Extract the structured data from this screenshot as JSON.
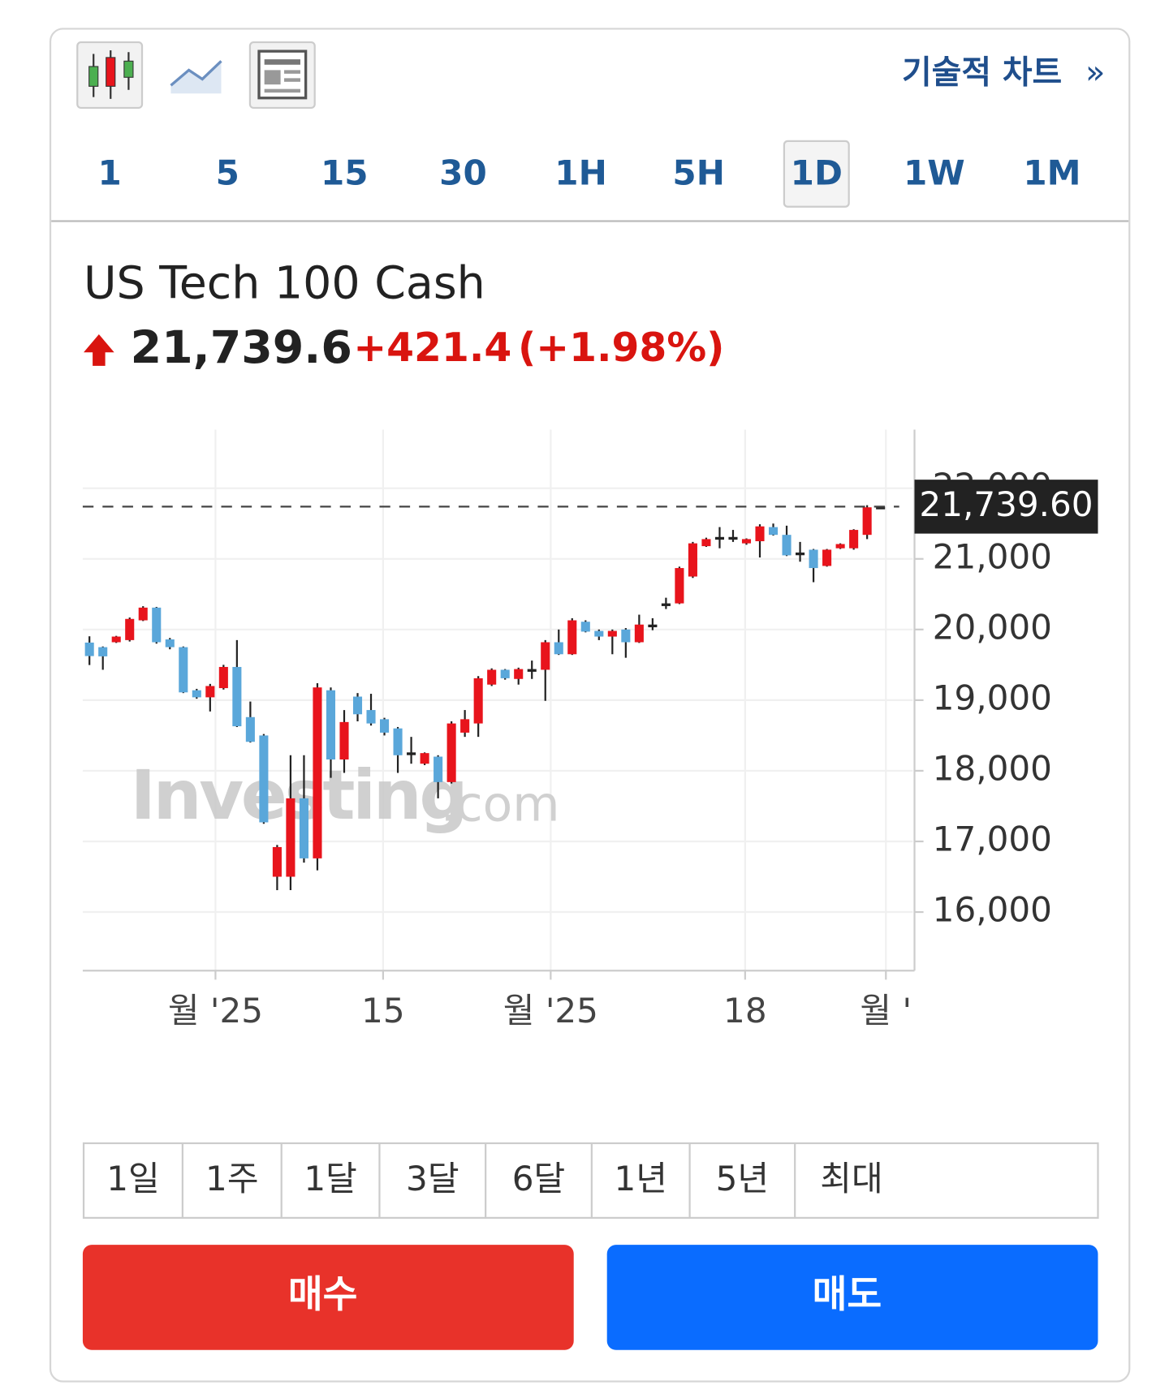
{
  "toolbar": {
    "link": "기술적 차트",
    "link_icon": "»"
  },
  "timeframes": [
    "1",
    "5",
    "15",
    "30",
    "1H",
    "5H",
    "1D",
    "1W",
    "1M"
  ],
  "active_timeframe": 6,
  "instrument": {
    "name": "US Tech 100 Cash",
    "price": "21,739.6",
    "change": "+421.4",
    "change_pct": "(+1.98%)"
  },
  "chart": {
    "type": "candlestick",
    "up_color": "#e8141c",
    "down_color": "#5aa7da",
    "grid": true,
    "watermark": "Investing",
    "watermark_suffix": ".com",
    "x": [
      0,
      1,
      2,
      3,
      4,
      5,
      6,
      7,
      8,
      9,
      10,
      11,
      12,
      13,
      14,
      15,
      16,
      17,
      18,
      19,
      20,
      21,
      22,
      23,
      24,
      25,
      26,
      27,
      28,
      29,
      30,
      31,
      32,
      33,
      34,
      35,
      36,
      37,
      38,
      39,
      40,
      41,
      42,
      43,
      44,
      45,
      46,
      47,
      48,
      49,
      50,
      51,
      52,
      53,
      54,
      55,
      56,
      57,
      58,
      59
    ],
    "open": [
      19815,
      19750,
      19820,
      19850,
      20130,
      20310,
      19860,
      19750,
      19140,
      19040,
      19170,
      19470,
      18760,
      18500,
      16500,
      16500,
      17610,
      16760,
      19140,
      18160,
      19050,
      18860,
      18730,
      18600,
      18260,
      18100,
      18200,
      17840,
      18540,
      18670,
      19220,
      19430,
      19300,
      19430,
      19430,
      19820,
      19650,
      20110,
      19980,
      19900,
      20000,
      19820,
      20070,
      20360,
      20370,
      20750,
      21180,
      21300,
      21300,
      21220,
      21250,
      21450,
      21340,
      21080,
      21130,
      20900,
      21150,
      21150,
      21340,
      21730
    ],
    "high": [
      19904,
      19760,
      19910,
      20170,
      20330,
      20320,
      19880,
      19760,
      19160,
      19230,
      19500,
      19850,
      18980,
      18520,
      16950,
      18220,
      18220,
      19240,
      19180,
      18860,
      19100,
      19090,
      18750,
      18620,
      18480,
      18260,
      18220,
      18700,
      18860,
      19340,
      19450,
      19440,
      19460,
      19560,
      19850,
      20000,
      20160,
      20130,
      20000,
      20000,
      20020,
      20210,
      20160,
      20450,
      20890,
      21240,
      21300,
      21450,
      21410,
      21290,
      21490,
      21500,
      21470,
      21240,
      21140,
      21140,
      21220,
      21420,
      21760,
      21750
    ],
    "low": [
      19497,
      19430,
      19810,
      19830,
      20120,
      19800,
      19720,
      19100,
      19020,
      18840,
      19150,
      18620,
      18400,
      17250,
      16310,
      16310,
      16700,
      16590,
      17900,
      17970,
      18700,
      18640,
      18500,
      17970,
      18100,
      18080,
      17610,
      17820,
      18480,
      18480,
      19200,
      19290,
      19220,
      19300,
      18990,
      19640,
      19640,
      19960,
      19850,
      19650,
      19600,
      19810,
      19990,
      20290,
      20360,
      20730,
      21170,
      21150,
      21240,
      21200,
      21020,
      21330,
      21040,
      20960,
      20670,
      20890,
      21140,
      21130,
      21280,
      21720
    ],
    "close": [
      19624,
      19620,
      19900,
      20150,
      20310,
      19820,
      19750,
      19110,
      19040,
      19200,
      19470,
      18630,
      18410,
      17270,
      16920,
      17610,
      16760,
      19180,
      18160,
      18690,
      18800,
      18670,
      18540,
      18220,
      18250,
      18250,
      17840,
      18670,
      18730,
      19310,
      19430,
      19310,
      19440,
      19440,
      19820,
      19650,
      20130,
      19970,
      19900,
      19980,
      19820,
      20070,
      20070,
      20370,
      20870,
      21220,
      21280,
      21310,
      21310,
      21280,
      21460,
      21340,
      21050,
      21090,
      20870,
      21130,
      21210,
      21410,
      21730,
      21740
    ],
    "xlim": [
      -0.5,
      61.4
    ],
    "xticks": [
      {
        "value": 9.4,
        "label": "월 '25"
      },
      {
        "value": 21.9,
        "label": "15"
      },
      {
        "value": 34.4,
        "label": "월 '25"
      },
      {
        "value": 48.9,
        "label": "18"
      },
      {
        "value": 59.4,
        "label": "월 '"
      }
    ],
    "ylim": [
      15170,
      22830
    ],
    "yticks": [
      {
        "value": 16000,
        "label": "16,000"
      },
      {
        "value": 17000,
        "label": "17,000"
      },
      {
        "value": 18000,
        "label": "18,000"
      },
      {
        "value": 19000,
        "label": "19,000"
      },
      {
        "value": 20000,
        "label": "20,000"
      },
      {
        "value": 21000,
        "label": "21,000"
      },
      {
        "value": 22000,
        "label": "22,000"
      }
    ],
    "last_price": {
      "value": 21739.6,
      "label": "21,739.60"
    }
  },
  "ranges": [
    "1일",
    "1주",
    "1달",
    "3달",
    "6달",
    "1년",
    "5년",
    "최대"
  ],
  "buttons": {
    "buy": "매수",
    "sell": "매도"
  }
}
